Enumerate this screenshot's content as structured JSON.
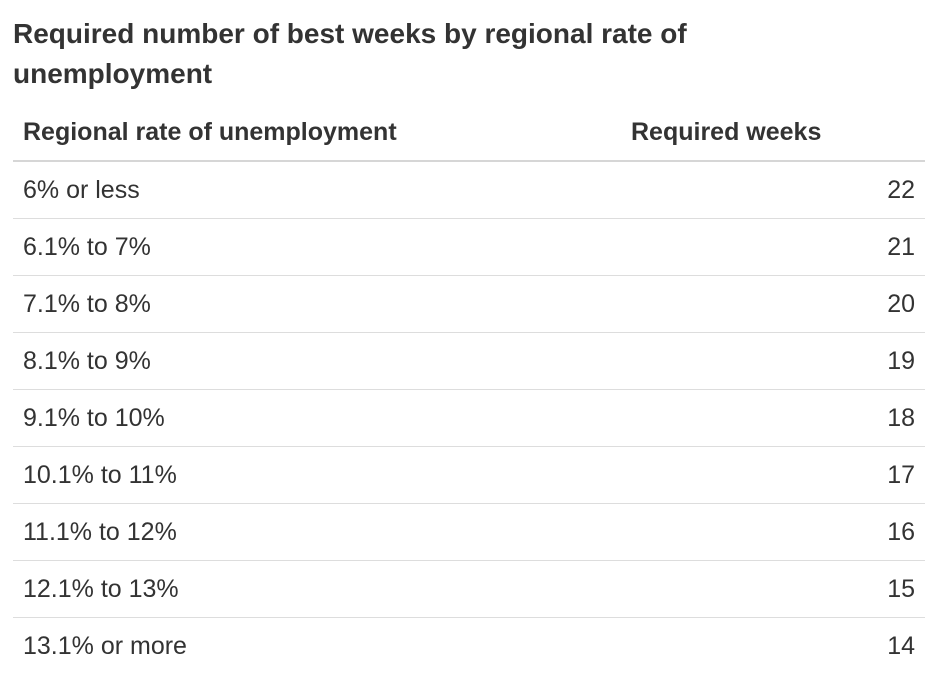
{
  "title": "Required number of best weeks by regional rate of unemployment",
  "headers": {
    "rate": "Regional rate of unemployment",
    "weeks": "Required weeks"
  },
  "rows": [
    {
      "rate": "6% or less",
      "weeks": "22"
    },
    {
      "rate": "6.1% to 7%",
      "weeks": "21"
    },
    {
      "rate": "7.1% to 8%",
      "weeks": "20"
    },
    {
      "rate": "8.1% to 9%",
      "weeks": "19"
    },
    {
      "rate": "9.1% to 10%",
      "weeks": "18"
    },
    {
      "rate": "10.1% to 11%",
      "weeks": "17"
    },
    {
      "rate": "11.1% to 12%",
      "weeks": "16"
    },
    {
      "rate": "12.1% to 13%",
      "weeks": "15"
    },
    {
      "rate": "13.1% or more",
      "weeks": "14"
    }
  ]
}
